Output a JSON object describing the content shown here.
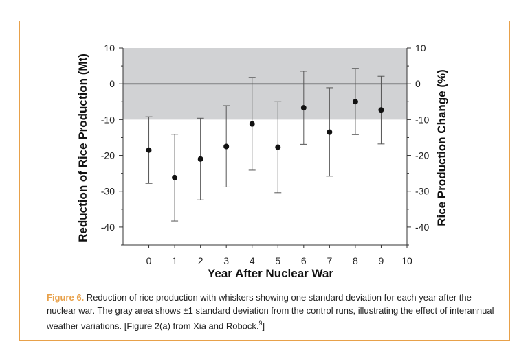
{
  "caption": {
    "figure_label": "Figure 6.",
    "text": " Reduction of rice production with whiskers showing one standard deviation for each year after the nuclear war. The gray area shows ±1 standard deviation from the control runs, illustrating the effect of interannual weather variations.  [Figure 2(a) from Xia and Robock.",
    "superscript": "9",
    "closing": "]"
  },
  "colors": {
    "frame_border": "#e8a14a",
    "shaded_band": "#d1d2d4",
    "zero_line": "#8a8b8d",
    "markers": "#111111"
  },
  "chart_data": {
    "type": "scatter",
    "title": "",
    "xlabel": "Year After Nuclear War",
    "ylabel": "Reduction of Rice Production (Mt)",
    "ylabel_right": "Rice Production Change (%)",
    "x_ticks": [
      "0",
      "1",
      "2",
      "3",
      "4",
      "5",
      "6",
      "7",
      "8",
      "9",
      "10"
    ],
    "y_ticks_left": [
      "10",
      "0",
      "-10",
      "-20",
      "-30",
      "-40"
    ],
    "y_ticks_right": [
      "10",
      "0",
      "-10",
      "-20",
      "-30",
      "-40"
    ],
    "xlim": [
      -1,
      10
    ],
    "ylim": [
      -45,
      10
    ],
    "y_right_lim": [
      -45,
      10
    ],
    "control_band": {
      "low": -10,
      "high": 10
    },
    "zero_line": 0,
    "grid": false,
    "series": [
      {
        "x": [
          0,
          1,
          2,
          3,
          4,
          5,
          6,
          7,
          8,
          9
        ],
        "y": [
          -18.5,
          -26.2,
          -21.0,
          -17.5,
          -11.2,
          -17.7,
          -6.7,
          -13.5,
          -5.0,
          -7.3
        ],
        "err_low": [
          -27.8,
          -38.3,
          -32.4,
          -28.8,
          -24.1,
          -30.4,
          -16.9,
          -25.8,
          -14.2,
          -16.8
        ],
        "err_high": [
          -9.2,
          -14.1,
          -9.6,
          -6.1,
          1.8,
          -5.0,
          3.5,
          -1.1,
          4.3,
          2.1
        ]
      }
    ]
  }
}
